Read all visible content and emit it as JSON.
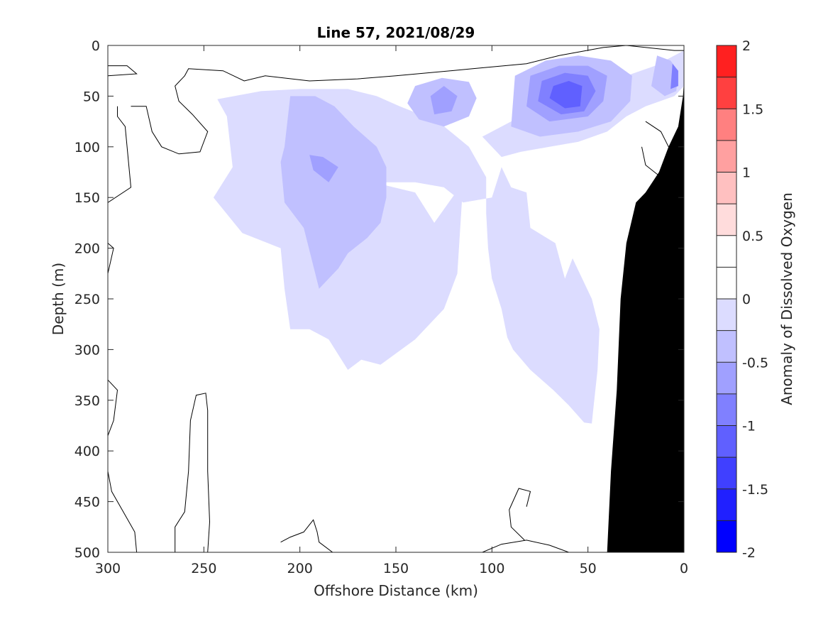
{
  "chart_data": {
    "type": "heatmap",
    "subtype": "filled-contour depth section",
    "title": "Line 57, 2021/08/29",
    "xlabel": "Offshore Distance (km)",
    "ylabel": "Depth (m)",
    "colorbar_label": "Anomaly of Dissolved Oxygen",
    "xlim": [
      300,
      0
    ],
    "x_reversed": true,
    "ylim": [
      0,
      500
    ],
    "y_reversed": true,
    "x_ticks": [
      300,
      250,
      200,
      150,
      100,
      50,
      0
    ],
    "x_tick_labels": [
      "300",
      "250",
      "200",
      "150",
      "100",
      "50",
      "0"
    ],
    "y_ticks": [
      0,
      50,
      100,
      150,
      200,
      250,
      300,
      350,
      400,
      450,
      500
    ],
    "y_tick_labels": [
      "0",
      "50",
      "100",
      "150",
      "200",
      "250",
      "300",
      "350",
      "400",
      "450",
      "500"
    ],
    "colorbar": {
      "range": [
        -2,
        2
      ],
      "levels": [
        -2,
        -1.75,
        -1.5,
        -1.25,
        -1,
        -0.75,
        -0.5,
        -0.25,
        0,
        0.25,
        0.5,
        0.75,
        1,
        1.25,
        1.5,
        1.75,
        2
      ],
      "tick_values": [
        -2,
        -1.5,
        -1,
        -0.5,
        0,
        0.5,
        1,
        1.5,
        2
      ],
      "tick_labels": [
        "-2",
        "-1.5",
        "-1",
        "-0.5",
        "0",
        "0.5",
        "1",
        "1.5",
        "2"
      ],
      "band_colors": [
        "#0000ff",
        "#2020ff",
        "#4040ff",
        "#6060ff",
        "#8080ff",
        "#a0a0ff",
        "#c0c0ff",
        "#dcdcff",
        "#ffffff",
        "#ffffff",
        "#ffdcdc",
        "#ffc0c0",
        "#ffa0a0",
        "#ff8080",
        "#ff4040",
        "#ff2020"
      ],
      "placement": "right"
    },
    "contour_regions": [
      {
        "name": "negative-anomaly-offshore",
        "level": -0.25,
        "points": [
          [
            243,
            53
          ],
          [
            220,
            45
          ],
          [
            200,
            43
          ],
          [
            175,
            43
          ],
          [
            160,
            50
          ],
          [
            148,
            60
          ],
          [
            128,
            75
          ],
          [
            112,
            100
          ],
          [
            103,
            130
          ],
          [
            103,
            165
          ],
          [
            102,
            200
          ],
          [
            100,
            230
          ],
          [
            95,
            260
          ],
          [
            92,
            288
          ],
          [
            89,
            300
          ],
          [
            80,
            320
          ],
          [
            68,
            340
          ],
          [
            60,
            355
          ],
          [
            52,
            372
          ],
          [
            48,
            373
          ],
          [
            47,
            355
          ],
          [
            45,
            320
          ],
          [
            44,
            280
          ],
          [
            48,
            250
          ],
          [
            58,
            210
          ],
          [
            62,
            230
          ],
          [
            67,
            195
          ],
          [
            80,
            180
          ],
          [
            82,
            145
          ],
          [
            90,
            140
          ],
          [
            95,
            120
          ],
          [
            100,
            150
          ],
          [
            115,
            155
          ],
          [
            125,
            140
          ],
          [
            140,
            135
          ],
          [
            162,
            135
          ],
          [
            140,
            145
          ],
          [
            130,
            175
          ],
          [
            115,
            135
          ],
          [
            118,
            225
          ],
          [
            125,
            260
          ],
          [
            140,
            290
          ],
          [
            158,
            315
          ],
          [
            168,
            310
          ],
          [
            175,
            320
          ],
          [
            185,
            290
          ],
          [
            195,
            280
          ],
          [
            205,
            280
          ],
          [
            208,
            240
          ],
          [
            210,
            200
          ],
          [
            230,
            185
          ],
          [
            245,
            150
          ],
          [
            235,
            120
          ],
          [
            238,
            70
          ]
        ]
      },
      {
        "name": "negative-anomaly-nearshore",
        "level": -0.25,
        "points": [
          [
            105,
            90
          ],
          [
            90,
            75
          ],
          [
            75,
            65
          ],
          [
            60,
            50
          ],
          [
            45,
            40
          ],
          [
            30,
            30
          ],
          [
            15,
            20
          ],
          [
            5,
            10
          ],
          [
            0,
            5
          ],
          [
            0,
            40
          ],
          [
            5,
            50
          ],
          [
            20,
            60
          ],
          [
            30,
            70
          ],
          [
            40,
            85
          ],
          [
            55,
            95
          ],
          [
            70,
            100
          ],
          [
            85,
            105
          ],
          [
            95,
            110
          ]
        ]
      },
      {
        "name": "band-minus-050-offshore",
        "level": -0.5,
        "points": [
          [
            205,
            50
          ],
          [
            192,
            50
          ],
          [
            182,
            60
          ],
          [
            172,
            80
          ],
          [
            160,
            100
          ],
          [
            155,
            120
          ],
          [
            155,
            150
          ],
          [
            158,
            175
          ],
          [
            165,
            190
          ],
          [
            175,
            205
          ],
          [
            180,
            220
          ],
          [
            190,
            240
          ],
          [
            192,
            225
          ],
          [
            198,
            180
          ],
          [
            208,
            155
          ],
          [
            210,
            115
          ],
          [
            208,
            100
          ]
        ]
      },
      {
        "name": "band-minus-075-offshore",
        "level": -0.75,
        "points": [
          [
            195,
            108
          ],
          [
            188,
            110
          ],
          [
            180,
            120
          ],
          [
            185,
            135
          ],
          [
            193,
            123
          ]
        ]
      },
      {
        "name": "band-minus-050-mid",
        "level": -0.5,
        "points": [
          [
            140,
            40
          ],
          [
            126,
            32
          ],
          [
            112,
            36
          ],
          [
            108,
            52
          ],
          [
            112,
            70
          ],
          [
            125,
            80
          ],
          [
            138,
            73
          ],
          [
            144,
            57
          ]
        ]
      },
      {
        "name": "band-minus-075-mid",
        "level": -0.75,
        "points": [
          [
            132,
            50
          ],
          [
            125,
            40
          ],
          [
            118,
            50
          ],
          [
            121,
            65
          ],
          [
            130,
            68
          ]
        ]
      },
      {
        "name": "band-minus-050-nearshore",
        "level": -0.5,
        "points": [
          [
            88,
            30
          ],
          [
            72,
            15
          ],
          [
            55,
            10
          ],
          [
            38,
            15
          ],
          [
            27,
            30
          ],
          [
            28,
            55
          ],
          [
            38,
            75
          ],
          [
            55,
            85
          ],
          [
            75,
            90
          ],
          [
            90,
            80
          ]
        ]
      },
      {
        "name": "band-minus-075-nearshore",
        "level": -0.75,
        "points": [
          [
            80,
            30
          ],
          [
            65,
            20
          ],
          [
            50,
            20
          ],
          [
            40,
            30
          ],
          [
            42,
            55
          ],
          [
            50,
            70
          ],
          [
            70,
            75
          ],
          [
            82,
            60
          ]
        ]
      },
      {
        "name": "band-minus-100-nearshore",
        "level": -1.0,
        "points": [
          [
            74,
            35
          ],
          [
            62,
            27
          ],
          [
            50,
            30
          ],
          [
            46,
            45
          ],
          [
            52,
            65
          ],
          [
            64,
            68
          ],
          [
            76,
            55
          ]
        ]
      },
      {
        "name": "band-minus-125-nearshore",
        "level": -1.25,
        "points": [
          [
            68,
            40
          ],
          [
            60,
            35
          ],
          [
            53,
            40
          ],
          [
            54,
            60
          ],
          [
            62,
            62
          ],
          [
            70,
            52
          ]
        ]
      },
      {
        "name": "band-minus-050-coast",
        "level": -0.5,
        "points": [
          [
            14,
            10
          ],
          [
            7,
            15
          ],
          [
            3,
            25
          ],
          [
            4,
            45
          ],
          [
            10,
            50
          ],
          [
            17,
            40
          ]
        ]
      },
      {
        "name": "band-minus-100-coast",
        "level": -1.0,
        "points": [
          [
            6,
            18
          ],
          [
            3,
            25
          ],
          [
            3,
            40
          ],
          [
            7,
            43
          ]
        ]
      },
      {
        "name": "positive-anomaly-surface",
        "level": 0.25,
        "points": [
          [
            222,
            0
          ],
          [
            210,
            5
          ],
          [
            190,
            11
          ],
          [
            175,
            8
          ],
          [
            165,
            2
          ],
          [
            168,
            0
          ]
        ]
      },
      {
        "name": "positive-anomaly-offshore-edge",
        "level": 0.25,
        "points": [
          [
            300,
            105
          ],
          [
            297,
            110
          ],
          [
            296,
            140
          ],
          [
            300,
            145
          ]
        ]
      },
      {
        "name": "positive-anomaly-coastal",
        "level": 0.25,
        "points": [
          [
            12,
            95
          ],
          [
            9,
            105
          ],
          [
            5,
            125
          ],
          [
            14,
            120
          ]
        ]
      }
    ],
    "zero_contours": [
      [
        [
          300,
          20
        ],
        [
          290,
          20
        ],
        [
          285,
          28
        ],
        [
          300,
          30
        ]
      ],
      [
        [
          300,
          155
        ],
        [
          288,
          140
        ],
        [
          291,
          80
        ],
        [
          295,
          70
        ],
        [
          295,
          60
        ]
      ],
      [
        [
          300,
          195
        ],
        [
          297,
          200
        ],
        [
          300,
          225
        ]
      ],
      [
        [
          300,
          330
        ],
        [
          295,
          340
        ],
        [
          297,
          370
        ],
        [
          300,
          385
        ]
      ],
      [
        [
          300,
          420
        ],
        [
          298,
          440
        ],
        [
          292,
          460
        ],
        [
          286,
          480
        ],
        [
          285,
          500
        ]
      ],
      [
        [
          265,
          500
        ],
        [
          265,
          475
        ],
        [
          260,
          460
        ],
        [
          258,
          420
        ],
        [
          257,
          370
        ],
        [
          254,
          345
        ],
        [
          249,
          343
        ],
        [
          248,
          360
        ],
        [
          248,
          420
        ],
        [
          247,
          470
        ],
        [
          248,
          500
        ]
      ],
      [
        [
          288,
          60
        ],
        [
          280,
          60
        ],
        [
          277,
          85
        ],
        [
          272,
          100
        ],
        [
          263,
          107
        ],
        [
          252,
          105
        ],
        [
          248,
          85
        ],
        [
          256,
          68
        ],
        [
          263,
          55
        ],
        [
          265,
          40
        ],
        [
          260,
          30
        ],
        [
          258,
          23
        ],
        [
          240,
          25
        ],
        [
          229,
          35
        ],
        [
          218,
          30
        ],
        [
          195,
          35
        ],
        [
          170,
          33
        ],
        [
          150,
          30
        ],
        [
          110,
          23
        ],
        [
          82,
          18
        ],
        [
          65,
          10
        ],
        [
          42,
          2
        ],
        [
          30,
          0
        ],
        [
          5,
          5
        ],
        [
          0,
          5
        ]
      ],
      [
        [
          210,
          490
        ],
        [
          205,
          485
        ],
        [
          198,
          480
        ],
        [
          193,
          468
        ],
        [
          191,
          480
        ],
        [
          190,
          490
        ],
        [
          183,
          500
        ],
        [
          210,
          500
        ]
      ],
      [
        [
          105,
          500
        ],
        [
          95,
          492
        ],
        [
          82,
          488
        ],
        [
          70,
          493
        ],
        [
          60,
          500
        ]
      ],
      [
        [
          82,
          455
        ],
        [
          80,
          440
        ],
        [
          86,
          437
        ],
        [
          91,
          458
        ],
        [
          90,
          475
        ],
        [
          83,
          488
        ]
      ],
      [
        [
          20,
          75
        ],
        [
          12,
          85
        ],
        [
          8,
          100
        ],
        [
          5,
          110
        ],
        [
          3,
          122
        ],
        [
          12,
          130
        ],
        [
          20,
          118
        ],
        [
          22,
          100
        ]
      ],
      [
        [
          30,
          355
        ],
        [
          28,
          365
        ],
        [
          27,
          375
        ],
        [
          30,
          385
        ]
      ]
    ],
    "land_mask": {
      "name": "continental-shelf-bathymetry",
      "color": "#000000",
      "points": [
        [
          0,
          35
        ],
        [
          0.5,
          50
        ],
        [
          3,
          80
        ],
        [
          8,
          100
        ],
        [
          13,
          125
        ],
        [
          20,
          145
        ],
        [
          25,
          155
        ],
        [
          30,
          195
        ],
        [
          33,
          250
        ],
        [
          35,
          340
        ],
        [
          38,
          420
        ],
        [
          40,
          500
        ],
        [
          0,
          500
        ]
      ]
    }
  }
}
